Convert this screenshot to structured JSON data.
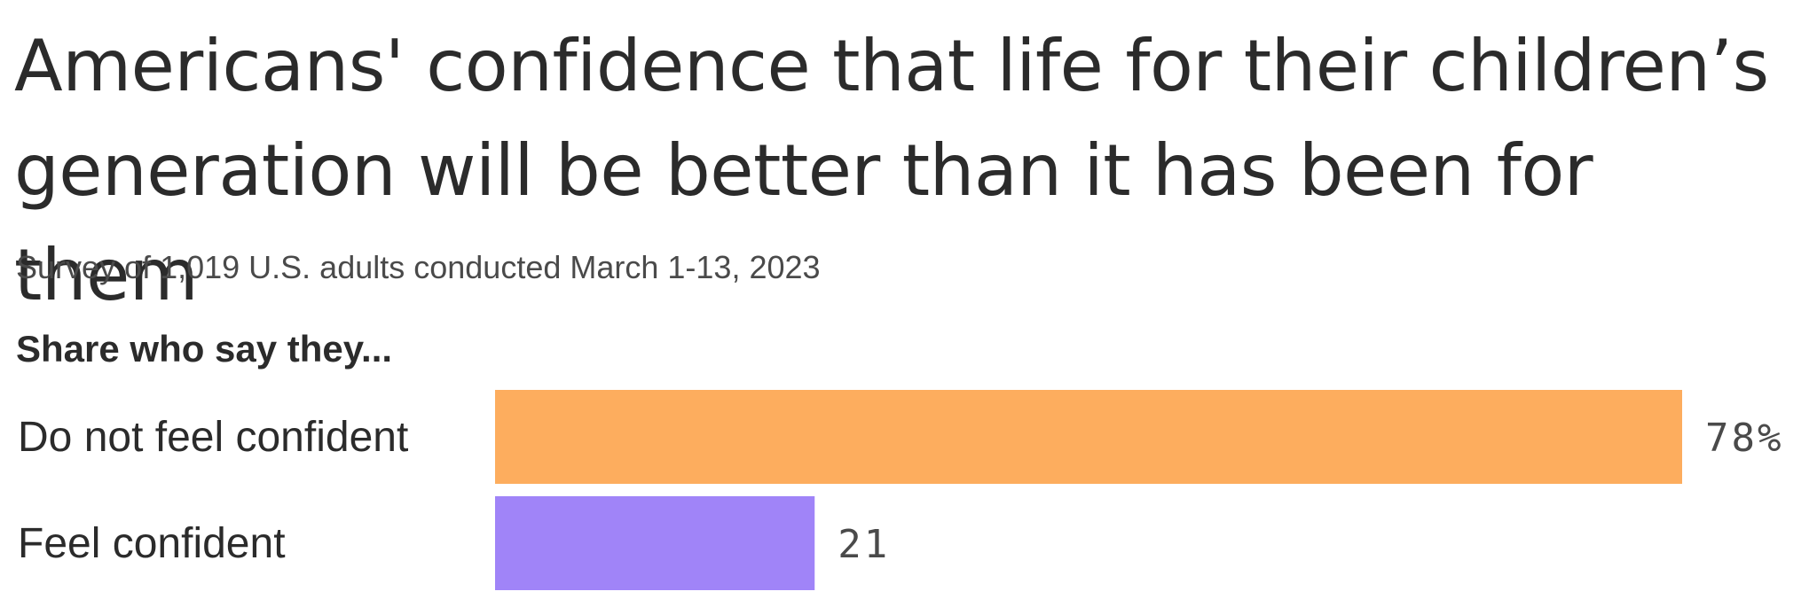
{
  "chart_data": {
    "type": "bar",
    "orientation": "horizontal",
    "title": "Americans' confidence that life for their children’s generation will be better than it has been for them",
    "subtitle": "Survey of 1,019 U.S. adults conducted March 1-13, 2023",
    "header": "Share who say they...",
    "categories": [
      "Do not feel confident",
      "Feel confident"
    ],
    "values": [
      78,
      21
    ],
    "value_labels": [
      "78%",
      "21"
    ],
    "colors": [
      "#FDAD5E",
      "#A084F8"
    ],
    "xlim": [
      0,
      78
    ],
    "grid": false,
    "legend": "none"
  }
}
